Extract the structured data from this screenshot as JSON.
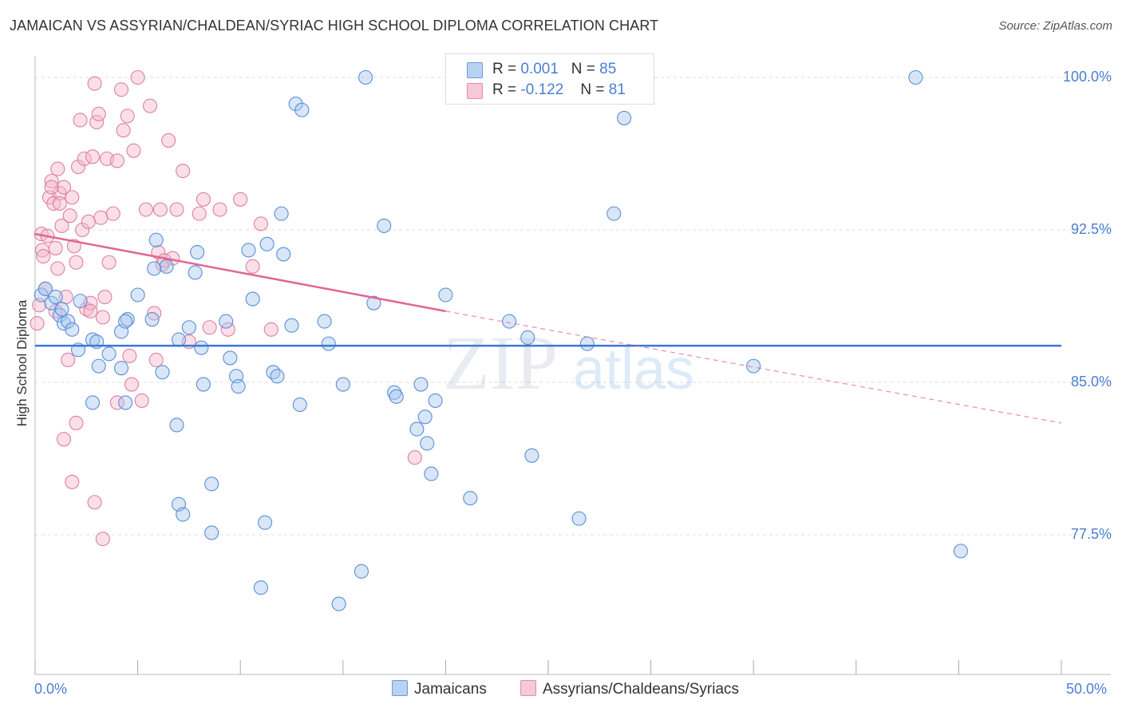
{
  "header": {
    "title": "JAMAICAN VS ASSYRIAN/CHALDEAN/SYRIAC HIGH SCHOOL DIPLOMA CORRELATION CHART",
    "source": "Source: ZipAtlas.com"
  },
  "legend": {
    "rows": [
      {
        "r_label": "R =",
        "r_value": "0.001",
        "n_label": "N =",
        "n_value": "85"
      },
      {
        "r_label": "R =",
        "r_value": "-0.122",
        "n_label": "N =",
        "n_value": "81"
      }
    ]
  },
  "watermark": {
    "zip": "ZIP",
    "atlas": "atlas"
  },
  "colors": {
    "blue_fill": "#a8c8f0",
    "blue_stroke": "#5b8fd6",
    "blue_line": "#3a78d8",
    "pink_fill": "#f5b8cc",
    "pink_stroke": "#e07fa0",
    "pink_line": "#e0688f",
    "grid": "#dddddd",
    "tick_label": "#4a7fd4"
  },
  "chart_data": {
    "type": "scatter",
    "title": "JAMAICAN VS ASSYRIAN/CHALDEAN/SYRIAC HIGH SCHOOL DIPLOMA CORRELATION CHART",
    "xlabel": "",
    "ylabel": "High School Diploma",
    "xlim": [
      0,
      50
    ],
    "ylim": [
      71.0,
      101.0
    ],
    "x_tick_labels": [
      "0.0%",
      "50.0%"
    ],
    "y_ticks": [
      77.5,
      85.0,
      92.5,
      100.0
    ],
    "y_tick_labels": [
      "77.5%",
      "85.0%",
      "92.5%",
      "100.0%"
    ],
    "grid": true,
    "legend_position": "top-center and bottom",
    "series": [
      {
        "name": "Jamaicans",
        "color": "#a8c8f0",
        "trend": {
          "x": [
            0,
            50
          ],
          "y": [
            86.8,
            86.8
          ]
        },
        "points": [
          [
            0.3,
            89.3
          ],
          [
            0.5,
            89.6
          ],
          [
            0.8,
            88.9
          ],
          [
            1.0,
            89.2
          ],
          [
            1.2,
            88.3
          ],
          [
            1.3,
            88.6
          ],
          [
            1.4,
            87.9
          ],
          [
            1.6,
            88.0
          ],
          [
            1.8,
            87.6
          ],
          [
            2.2,
            89.0
          ],
          [
            2.1,
            86.6
          ],
          [
            2.8,
            87.1
          ],
          [
            3.0,
            87.0
          ],
          [
            3.1,
            85.8
          ],
          [
            3.6,
            86.4
          ],
          [
            4.2,
            85.7
          ],
          [
            4.5,
            88.1
          ],
          [
            4.2,
            87.5
          ],
          [
            4.4,
            88.0
          ],
          [
            5.0,
            89.3
          ],
          [
            5.7,
            88.1
          ],
          [
            6.4,
            90.7
          ],
          [
            5.8,
            90.6
          ],
          [
            5.9,
            92.0
          ],
          [
            6.2,
            85.5
          ],
          [
            7.0,
            87.1
          ],
          [
            7.5,
            87.7
          ],
          [
            8.1,
            86.7
          ],
          [
            7.8,
            90.4
          ],
          [
            7.9,
            91.4
          ],
          [
            8.2,
            84.9
          ],
          [
            8.6,
            80.0
          ],
          [
            8.6,
            77.6
          ],
          [
            6.9,
            82.9
          ],
          [
            7.0,
            79.0
          ],
          [
            7.2,
            78.5
          ],
          [
            9.3,
            88.0
          ],
          [
            9.5,
            86.2
          ],
          [
            9.8,
            85.3
          ],
          [
            9.9,
            84.8
          ],
          [
            10.4,
            91.5
          ],
          [
            10.6,
            89.1
          ],
          [
            11.0,
            74.9
          ],
          [
            11.2,
            78.1
          ],
          [
            11.3,
            91.8
          ],
          [
            11.6,
            85.5
          ],
          [
            11.8,
            85.3
          ],
          [
            12.0,
            93.3
          ],
          [
            12.1,
            91.3
          ],
          [
            12.5,
            87.8
          ],
          [
            12.9,
            83.9
          ],
          [
            12.7,
            98.7
          ],
          [
            13.0,
            98.4
          ],
          [
            14.1,
            88.0
          ],
          [
            14.3,
            86.9
          ],
          [
            15.0,
            84.9
          ],
          [
            14.8,
            74.1
          ],
          [
            15.9,
            75.7
          ],
          [
            16.1,
            100.0
          ],
          [
            16.5,
            88.9
          ],
          [
            17.0,
            92.7
          ],
          [
            17.5,
            84.5
          ],
          [
            17.6,
            84.3
          ],
          [
            18.6,
            82.7
          ],
          [
            18.8,
            84.9
          ],
          [
            19.0,
            83.3
          ],
          [
            19.1,
            82.0
          ],
          [
            19.3,
            80.5
          ],
          [
            19.5,
            84.1
          ],
          [
            20.0,
            89.3
          ],
          [
            21.2,
            79.3
          ],
          [
            23.1,
            88.0
          ],
          [
            24.0,
            87.2
          ],
          [
            24.2,
            81.4
          ],
          [
            25.1,
            100.0
          ],
          [
            26.5,
            78.3
          ],
          [
            26.9,
            86.9
          ],
          [
            28.2,
            93.3
          ],
          [
            28.7,
            98.0
          ],
          [
            35.0,
            85.8
          ],
          [
            42.9,
            100.0
          ],
          [
            45.1,
            76.7
          ],
          [
            2.8,
            84.0
          ],
          [
            4.4,
            84.0
          ],
          [
            25.0,
            100.0
          ]
        ]
      },
      {
        "name": "Assyrians/Chaldeans/Syriacs",
        "color": "#f5b8cc",
        "trend": {
          "x": [
            0,
            20,
            50
          ],
          "y": [
            92.3,
            88.5,
            83.0
          ],
          "solid_until": 20
        },
        "points": [
          [
            0.1,
            87.9
          ],
          [
            0.2,
            88.8
          ],
          [
            0.3,
            92.3
          ],
          [
            0.35,
            91.5
          ],
          [
            0.4,
            91.2
          ],
          [
            0.5,
            89.6
          ],
          [
            0.6,
            92.2
          ],
          [
            0.7,
            94.1
          ],
          [
            0.8,
            94.9
          ],
          [
            0.9,
            93.8
          ],
          [
            1.0,
            88.5
          ],
          [
            1.0,
            91.6
          ],
          [
            1.1,
            95.5
          ],
          [
            1.2,
            94.3
          ],
          [
            1.3,
            92.7
          ],
          [
            1.4,
            94.6
          ],
          [
            1.5,
            89.2
          ],
          [
            1.6,
            86.1
          ],
          [
            1.7,
            93.2
          ],
          [
            1.8,
            94.1
          ],
          [
            1.9,
            91.7
          ],
          [
            2.0,
            90.9
          ],
          [
            2.1,
            95.6
          ],
          [
            2.2,
            97.9
          ],
          [
            2.3,
            92.5
          ],
          [
            2.4,
            96.0
          ],
          [
            2.5,
            88.6
          ],
          [
            2.6,
            92.9
          ],
          [
            2.7,
            88.9
          ],
          [
            2.7,
            88.5
          ],
          [
            2.8,
            96.1
          ],
          [
            2.9,
            99.7
          ],
          [
            3.0,
            97.8
          ],
          [
            3.1,
            98.2
          ],
          [
            3.2,
            93.1
          ],
          [
            3.3,
            88.2
          ],
          [
            3.4,
            89.2
          ],
          [
            3.5,
            96.0
          ],
          [
            3.6,
            90.9
          ],
          [
            3.8,
            93.3
          ],
          [
            4.0,
            95.9
          ],
          [
            4.2,
            99.4
          ],
          [
            4.3,
            97.4
          ],
          [
            4.5,
            98.1
          ],
          [
            4.6,
            86.3
          ],
          [
            4.7,
            84.9
          ],
          [
            4.8,
            96.4
          ],
          [
            5.0,
            100.0
          ],
          [
            5.2,
            84.1
          ],
          [
            5.4,
            93.5
          ],
          [
            5.6,
            98.6
          ],
          [
            5.8,
            88.4
          ],
          [
            5.9,
            86.1
          ],
          [
            6.0,
            91.4
          ],
          [
            6.1,
            93.5
          ],
          [
            6.2,
            90.8
          ],
          [
            6.3,
            91.0
          ],
          [
            6.5,
            96.9
          ],
          [
            6.7,
            91.1
          ],
          [
            6.9,
            93.5
          ],
          [
            7.2,
            95.4
          ],
          [
            7.5,
            87.0
          ],
          [
            8.0,
            93.3
          ],
          [
            8.2,
            94.0
          ],
          [
            8.5,
            87.7
          ],
          [
            9.0,
            93.5
          ],
          [
            9.4,
            87.6
          ],
          [
            10.0,
            94.0
          ],
          [
            10.6,
            90.7
          ],
          [
            11.0,
            92.8
          ],
          [
            11.5,
            87.6
          ],
          [
            2.0,
            83.0
          ],
          [
            1.4,
            82.2
          ],
          [
            1.8,
            80.1
          ],
          [
            2.9,
            79.1
          ],
          [
            3.3,
            77.3
          ],
          [
            1.2,
            93.8
          ],
          [
            0.8,
            94.6
          ],
          [
            1.1,
            90.6
          ],
          [
            4.0,
            84.0
          ],
          [
            18.5,
            81.3
          ]
        ]
      }
    ]
  }
}
